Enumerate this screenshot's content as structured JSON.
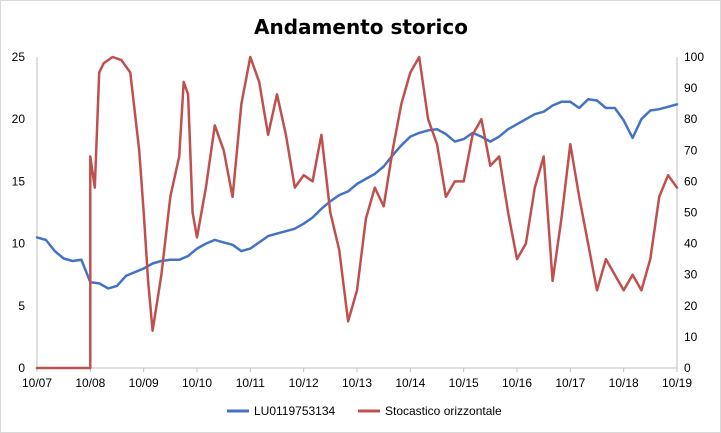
{
  "chart_data": {
    "type": "line",
    "title": "Andamento storico",
    "x_tick_labels": [
      "10/07",
      "10/08",
      "10/09",
      "10/10",
      "10/11",
      "10/12",
      "10/13",
      "10/14",
      "10/15",
      "10/16",
      "10/17",
      "10/18",
      "10/19"
    ],
    "y_left": {
      "ticks": [
        0,
        5,
        10,
        15,
        20,
        25
      ],
      "range": [
        0,
        25
      ]
    },
    "y_right": {
      "ticks": [
        0,
        10,
        20,
        30,
        40,
        50,
        60,
        70,
        80,
        90,
        100
      ],
      "range": [
        0,
        100
      ]
    },
    "grid": false,
    "legend_position": "bottom",
    "series": [
      {
        "name": "LU0119753134",
        "axis": "left",
        "color": "#4472C4",
        "x": [
          "10/07",
          "12/07",
          "02/08",
          "04/08",
          "06/08",
          "08/08",
          "10/08",
          "12/08",
          "02/09",
          "04/09",
          "06/09",
          "08/09",
          "10/09",
          "12/09",
          "02/10",
          "04/10",
          "06/10",
          "08/10",
          "10/10",
          "12/10",
          "02/11",
          "04/11",
          "06/11",
          "08/11",
          "10/11",
          "12/11",
          "02/12",
          "04/12",
          "06/12",
          "08/12",
          "10/12",
          "12/12",
          "02/13",
          "04/13",
          "06/13",
          "08/13",
          "10/13",
          "12/13",
          "02/14",
          "04/14",
          "06/14",
          "08/14",
          "10/14",
          "12/14",
          "02/15",
          "04/15",
          "06/15",
          "08/15",
          "10/15",
          "12/15",
          "02/16",
          "04/16",
          "06/16",
          "08/16",
          "10/16",
          "12/16",
          "02/17",
          "04/17",
          "06/17",
          "08/17",
          "10/17",
          "12/17",
          "02/18",
          "04/18",
          "06/18",
          "08/18",
          "10/18",
          "12/18",
          "02/19",
          "04/19",
          "06/19",
          "08/19",
          "10/19"
        ],
        "values": [
          10.5,
          10.3,
          9.4,
          8.8,
          8.6,
          8.7,
          6.9,
          6.8,
          6.4,
          6.6,
          7.4,
          7.7,
          8.0,
          8.4,
          8.6,
          8.7,
          8.7,
          9.0,
          9.6,
          10.0,
          10.3,
          10.1,
          9.9,
          9.4,
          9.6,
          10.1,
          10.6,
          10.8,
          11.0,
          11.2,
          11.6,
          12.1,
          12.8,
          13.4,
          13.9,
          14.2,
          14.8,
          15.2,
          15.6,
          16.2,
          17.1,
          17.9,
          18.6,
          18.9,
          19.1,
          19.2,
          18.8,
          18.2,
          18.4,
          18.9,
          18.6,
          18.2,
          18.6,
          19.2,
          19.6,
          20.0,
          20.4,
          20.6,
          21.1,
          21.4,
          21.4,
          20.9,
          21.6,
          21.5,
          20.9,
          20.9,
          19.9,
          18.5,
          20.0,
          20.7,
          20.8,
          21.0,
          21.2
        ]
      },
      {
        "name": "Stocastico orizzontale",
        "axis": "right",
        "color": "#C0504D",
        "x": [
          "10/07",
          "04/08",
          "09/08",
          "10/08",
          "10/08",
          "11/08",
          "12/08",
          "01/09",
          "03/09",
          "05/09",
          "07/09",
          "09/09",
          "10/09",
          "11/09",
          "12/09",
          "02/10",
          "04/10",
          "06/10",
          "07/10",
          "08/10",
          "09/10",
          "10/10",
          "12/10",
          "02/11",
          "04/11",
          "06/11",
          "08/11",
          "10/11",
          "12/11",
          "02/12",
          "04/12",
          "06/12",
          "08/12",
          "10/12",
          "12/12",
          "02/13",
          "04/13",
          "06/13",
          "08/13",
          "10/13",
          "12/13",
          "02/14",
          "04/14",
          "06/14",
          "08/14",
          "10/14",
          "12/14",
          "02/15",
          "04/15",
          "06/15",
          "08/15",
          "10/15",
          "12/15",
          "02/16",
          "04/16",
          "06/16",
          "08/16",
          "10/16",
          "12/16",
          "02/17",
          "04/17",
          "06/17",
          "08/17",
          "10/17",
          "12/17",
          "02/18",
          "04/18",
          "06/18",
          "08/18",
          "10/18",
          "12/18",
          "02/19",
          "04/19",
          "06/19",
          "08/19",
          "10/19"
        ],
        "values": [
          0,
          0,
          0,
          0,
          68,
          58,
          95,
          98,
          100,
          99,
          95,
          70,
          50,
          28,
          12,
          30,
          55,
          68,
          92,
          88,
          50,
          42,
          58,
          78,
          70,
          55,
          85,
          100,
          92,
          75,
          88,
          75,
          58,
          62,
          60,
          75,
          50,
          38,
          15,
          25,
          48,
          58,
          52,
          70,
          85,
          95,
          100,
          80,
          72,
          55,
          60,
          60,
          75,
          80,
          65,
          68,
          50,
          35,
          40,
          58,
          68,
          28,
          48,
          72,
          55,
          40,
          25,
          35,
          30,
          25,
          30,
          25,
          35,
          55,
          62,
          58
        ]
      }
    ]
  }
}
